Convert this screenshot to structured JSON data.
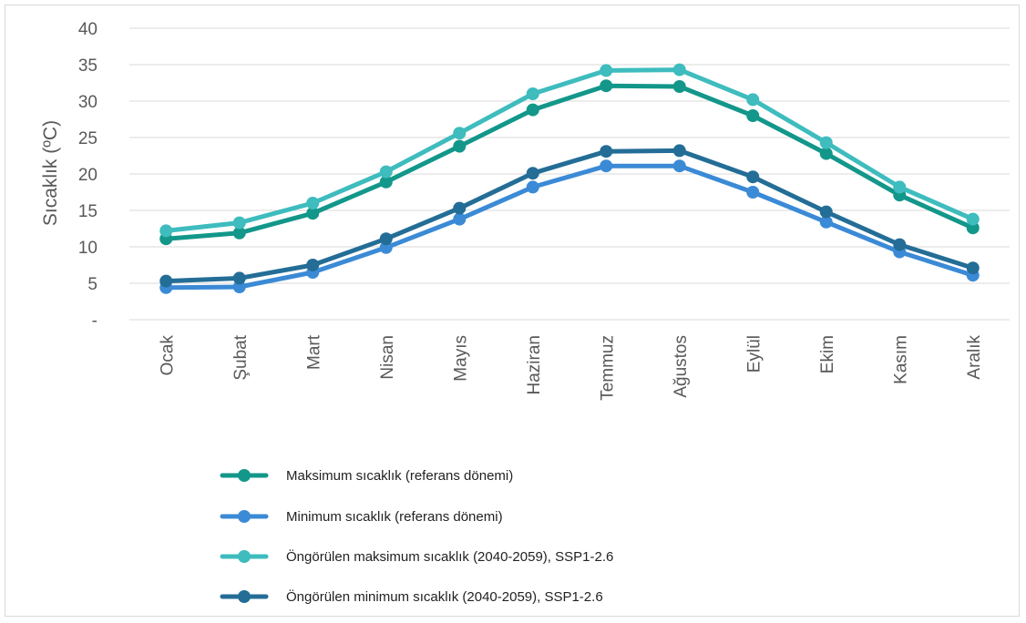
{
  "chart_data": {
    "type": "line",
    "title": "",
    "xlabel": "",
    "ylabel": "Sıcaklık (ºC)",
    "ylim": [
      0,
      40
    ],
    "yticks": [
      0,
      5,
      10,
      15,
      20,
      25,
      30,
      35,
      40
    ],
    "ytick_labels": [
      "-",
      "5",
      "10",
      "15",
      "20",
      "25",
      "30",
      "35",
      "40"
    ],
    "grid": true,
    "legend_position": "bottom",
    "categories": [
      "Ocak",
      "Şubat",
      "Mart",
      "Nisan",
      "Mayıs",
      "Haziran",
      "Temmuz",
      "Ağustos",
      "Eylül",
      "Ekim",
      "Kasım",
      "Aralık"
    ],
    "series": [
      {
        "name": "Maksimum sıcaklık (referans dönemi)",
        "color": "#12978a",
        "values": [
          11.1,
          11.9,
          14.6,
          18.9,
          23.8,
          28.8,
          32.1,
          32.0,
          28.0,
          22.8,
          17.1,
          12.6
        ]
      },
      {
        "name": "Minimum sıcaklık (referans dönemi)",
        "color": "#3b8ad6",
        "values": [
          4.4,
          4.5,
          6.5,
          9.9,
          13.8,
          18.2,
          21.1,
          21.1,
          17.5,
          13.4,
          9.3,
          6.1
        ]
      },
      {
        "name": "Öngörülen maksimum sıcaklık (2040-2059), SSP1-2.6",
        "color": "#3ebcbe",
        "values": [
          12.2,
          13.3,
          16.0,
          20.3,
          25.6,
          31.0,
          34.2,
          34.3,
          30.2,
          24.3,
          18.2,
          13.8
        ]
      },
      {
        "name": "Öngörülen minimum sıcaklık (2040-2059), SSP1-2.6",
        "color": "#236d96",
        "values": [
          5.3,
          5.7,
          7.5,
          11.1,
          15.3,
          20.1,
          23.1,
          23.2,
          19.6,
          14.8,
          10.3,
          7.1
        ]
      }
    ]
  }
}
